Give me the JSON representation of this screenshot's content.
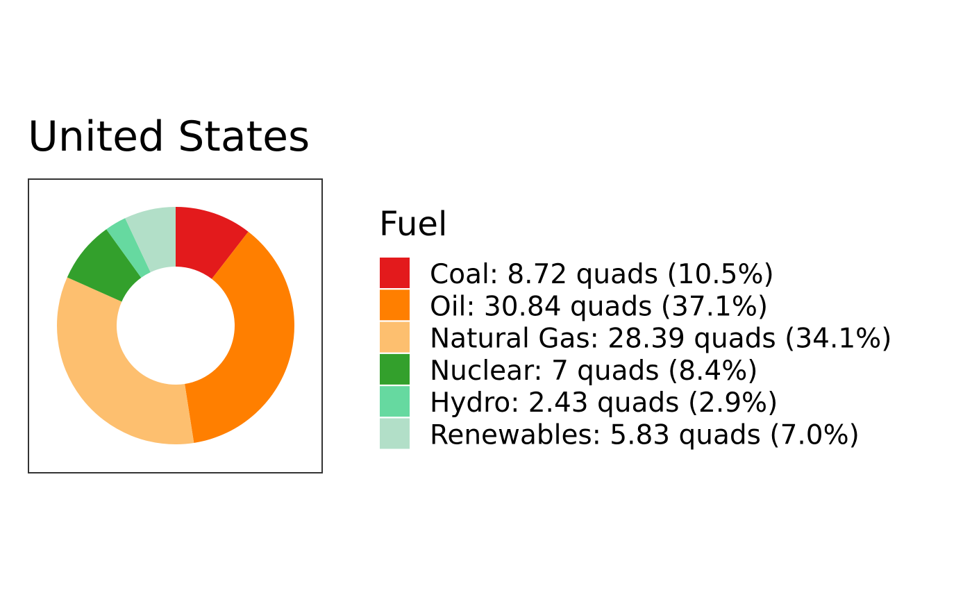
{
  "chart_data": {
    "type": "pie",
    "title": "United States",
    "legend_title": "Fuel",
    "legend_position": "right",
    "unit": "quads",
    "categories": [
      "Coal",
      "Oil",
      "Natural Gas",
      "Nuclear",
      "Hydro",
      "Renewables"
    ],
    "values": [
      8.72,
      30.84,
      28.39,
      7,
      2.43,
      5.83
    ],
    "percents": [
      "10.5%",
      "37.1%",
      "34.1%",
      "8.4%",
      "2.9%",
      "7.0%"
    ],
    "legend_labels": [
      "Coal: 8.72 quads (10.5%)",
      "Oil: 30.84 quads (37.1%)",
      "Natural Gas: 28.39 quads (34.1%)",
      "Nuclear: 7 quads (8.4%)",
      "Hydro: 2.43 quads (2.9%)",
      "Renewables: 5.83 quads (7.0%)"
    ],
    "colors": [
      "#e31a1c",
      "#ff7f00",
      "#fdbf6f",
      "#33a02c",
      "#66d9a0",
      "#b2dfc8"
    ],
    "donut": true
  }
}
